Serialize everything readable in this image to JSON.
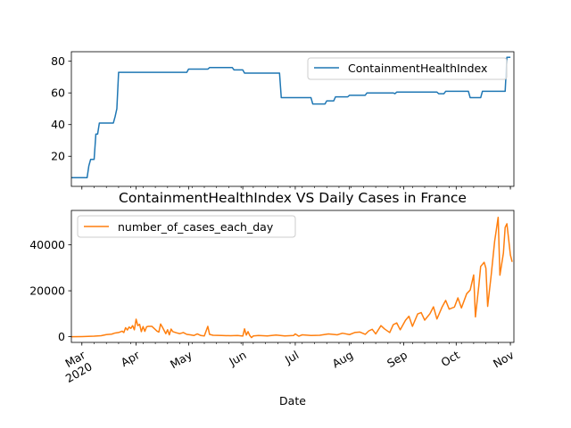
{
  "chart_data": [
    {
      "type": "line",
      "title": "",
      "xlabel": "",
      "ylabel": "",
      "xlim": [
        "2020-02-24",
        "2020-11-03"
      ],
      "ylim": [
        1,
        86
      ],
      "yticks": [
        20,
        40,
        60,
        80
      ],
      "legend_position": "top-right",
      "grid": false,
      "series": [
        {
          "name": "ContainmentHealthIndex",
          "color": "#1f77b4",
          "points": [
            [
              "2020-02-24",
              6.5
            ],
            [
              "2020-03-02",
              6.5
            ],
            [
              "2020-03-04",
              6.5
            ],
            [
              "2020-03-05",
              14
            ],
            [
              "2020-03-06",
              18
            ],
            [
              "2020-03-08",
              18
            ],
            [
              "2020-03-09",
              34
            ],
            [
              "2020-03-10",
              34
            ],
            [
              "2020-03-11",
              41
            ],
            [
              "2020-03-18",
              41
            ],
            [
              "2020-03-19",
              41
            ],
            [
              "2020-03-20",
              45
            ],
            [
              "2020-03-21",
              50
            ],
            [
              "2020-03-22",
              73
            ],
            [
              "2020-04-30",
              73
            ],
            [
              "2020-05-01",
              75
            ],
            [
              "2020-05-12",
              75
            ],
            [
              "2020-05-13",
              76
            ],
            [
              "2020-05-26",
              76
            ],
            [
              "2020-05-27",
              74.5
            ],
            [
              "2020-06-01",
              74.5
            ],
            [
              "2020-06-02",
              72.5
            ],
            [
              "2020-06-22",
              72.5
            ],
            [
              "2020-06-23",
              57
            ],
            [
              "2020-07-10",
              57
            ],
            [
              "2020-07-11",
              53
            ],
            [
              "2020-07-18",
              53
            ],
            [
              "2020-07-19",
              55
            ],
            [
              "2020-07-23",
              55
            ],
            [
              "2020-07-24",
              57.5
            ],
            [
              "2020-07-31",
              57.5
            ],
            [
              "2020-08-01",
              58.5
            ],
            [
              "2020-08-10",
              58.5
            ],
            [
              "2020-08-11",
              60
            ],
            [
              "2020-08-26",
              60
            ],
            [
              "2020-08-27",
              59.5
            ],
            [
              "2020-08-28",
              60.5
            ],
            [
              "2020-09-20",
              60.5
            ],
            [
              "2020-09-21",
              59.5
            ],
            [
              "2020-09-24",
              59.5
            ],
            [
              "2020-09-25",
              61
            ],
            [
              "2020-10-08",
              61
            ],
            [
              "2020-10-09",
              57
            ],
            [
              "2020-10-15",
              57
            ],
            [
              "2020-10-16",
              61
            ],
            [
              "2020-10-28",
              61
            ],
            [
              "2020-10-29",
              61
            ],
            [
              "2020-10-30",
              82.5
            ],
            [
              "2020-11-01",
              82.5
            ]
          ]
        }
      ]
    },
    {
      "type": "line",
      "title": "ContainmentHealthIndex VS Daily Cases in France",
      "xlabel": "Date",
      "ylabel": "",
      "xlim": [
        "2020-02-24",
        "2020-11-03"
      ],
      "ylim": [
        -2500,
        55000
      ],
      "yticks": [
        0,
        20000,
        40000
      ],
      "xticks": [
        {
          "date": "2020-03-01",
          "label": "Mar",
          "sublabel": "2020"
        },
        {
          "date": "2020-04-01",
          "label": "Apr"
        },
        {
          "date": "2020-05-01",
          "label": "May"
        },
        {
          "date": "2020-06-01",
          "label": "Jun"
        },
        {
          "date": "2020-07-01",
          "label": "Jul"
        },
        {
          "date": "2020-08-01",
          "label": "Aug"
        },
        {
          "date": "2020-09-01",
          "label": "Sep"
        },
        {
          "date": "2020-10-01",
          "label": "Oct"
        },
        {
          "date": "2020-11-01",
          "label": "Nov"
        }
      ],
      "legend_position": "top-left",
      "grid": false,
      "series": [
        {
          "name": "number_of_cases_each_day",
          "color": "#ff7f0e",
          "points": [
            [
              "2020-02-24",
              0
            ],
            [
              "2020-03-01",
              50
            ],
            [
              "2020-03-08",
              200
            ],
            [
              "2020-03-12",
              400
            ],
            [
              "2020-03-15",
              900
            ],
            [
              "2020-03-18",
              1100
            ],
            [
              "2020-03-20",
              1600
            ],
            [
              "2020-03-22",
              1800
            ],
            [
              "2020-03-24",
              2400
            ],
            [
              "2020-03-25",
              1800
            ],
            [
              "2020-03-26",
              3900
            ],
            [
              "2020-03-27",
              2900
            ],
            [
              "2020-03-28",
              4200
            ],
            [
              "2020-03-29",
              3600
            ],
            [
              "2020-03-30",
              4800
            ],
            [
              "2020-03-31",
              3000
            ],
            [
              "2020-04-01",
              7600
            ],
            [
              "2020-04-02",
              4800
            ],
            [
              "2020-04-03",
              5400
            ],
            [
              "2020-04-04",
              2200
            ],
            [
              "2020-04-05",
              4400
            ],
            [
              "2020-04-06",
              2300
            ],
            [
              "2020-04-07",
              4300
            ],
            [
              "2020-04-08",
              4500
            ],
            [
              "2020-04-10",
              4500
            ],
            [
              "2020-04-12",
              3100
            ],
            [
              "2020-04-13",
              2400
            ],
            [
              "2020-04-14",
              2000
            ],
            [
              "2020-04-15",
              5500
            ],
            [
              "2020-04-16",
              4200
            ],
            [
              "2020-04-18",
              1300
            ],
            [
              "2020-04-19",
              3000
            ],
            [
              "2020-04-20",
              800
            ],
            [
              "2020-04-21",
              3300
            ],
            [
              "2020-04-22",
              2200
            ],
            [
              "2020-04-24",
              1700
            ],
            [
              "2020-04-26",
              1300
            ],
            [
              "2020-04-28",
              1800
            ],
            [
              "2020-04-30",
              1000
            ],
            [
              "2020-05-02",
              800
            ],
            [
              "2020-05-04",
              500
            ],
            [
              "2020-05-06",
              1200
            ],
            [
              "2020-05-08",
              500
            ],
            [
              "2020-05-10",
              300
            ],
            [
              "2020-05-12",
              4500
            ],
            [
              "2020-05-13",
              1000
            ],
            [
              "2020-05-15",
              600
            ],
            [
              "2020-05-20",
              500
            ],
            [
              "2020-05-25",
              400
            ],
            [
              "2020-05-29",
              500
            ],
            [
              "2020-06-01",
              250
            ],
            [
              "2020-06-02",
              3400
            ],
            [
              "2020-06-03",
              700
            ],
            [
              "2020-06-04",
              2200
            ],
            [
              "2020-06-05",
              500
            ],
            [
              "2020-06-06",
              -400
            ],
            [
              "2020-06-07",
              300
            ],
            [
              "2020-06-10",
              500
            ],
            [
              "2020-06-15",
              300
            ],
            [
              "2020-06-20",
              700
            ],
            [
              "2020-06-25",
              300
            ],
            [
              "2020-06-30",
              500
            ],
            [
              "2020-07-01",
              1200
            ],
            [
              "2020-07-03",
              200
            ],
            [
              "2020-07-05",
              800
            ],
            [
              "2020-07-10",
              500
            ],
            [
              "2020-07-15",
              600
            ],
            [
              "2020-07-20",
              1200
            ],
            [
              "2020-07-25",
              800
            ],
            [
              "2020-07-28",
              1500
            ],
            [
              "2020-08-01",
              900
            ],
            [
              "2020-08-04",
              1800
            ],
            [
              "2020-08-07",
              2000
            ],
            [
              "2020-08-10",
              1000
            ],
            [
              "2020-08-12",
              2500
            ],
            [
              "2020-08-14",
              3200
            ],
            [
              "2020-08-16",
              1200
            ],
            [
              "2020-08-19",
              4800
            ],
            [
              "2020-08-21",
              3400
            ],
            [
              "2020-08-24",
              1800
            ],
            [
              "2020-08-26",
              5200
            ],
            [
              "2020-08-28",
              6000
            ],
            [
              "2020-08-30",
              3000
            ],
            [
              "2020-09-02",
              7100
            ],
            [
              "2020-09-04",
              8900
            ],
            [
              "2020-09-06",
              4500
            ],
            [
              "2020-09-09",
              9900
            ],
            [
              "2020-09-11",
              10500
            ],
            [
              "2020-09-13",
              7200
            ],
            [
              "2020-09-16",
              10000
            ],
            [
              "2020-09-18",
              13000
            ],
            [
              "2020-09-20",
              7700
            ],
            [
              "2020-09-23",
              13000
            ],
            [
              "2020-09-25",
              15800
            ],
            [
              "2020-09-27",
              12000
            ],
            [
              "2020-09-30",
              12900
            ],
            [
              "2020-10-02",
              16900
            ],
            [
              "2020-10-04",
              12500
            ],
            [
              "2020-10-07",
              18700
            ],
            [
              "2020-10-09",
              20300
            ],
            [
              "2020-10-11",
              26900
            ],
            [
              "2020-10-12",
              8600
            ],
            [
              "2020-10-14",
              22600
            ],
            [
              "2020-10-15",
              30600
            ],
            [
              "2020-10-17",
              32400
            ],
            [
              "2020-10-18",
              29800
            ],
            [
              "2020-10-19",
              13200
            ],
            [
              "2020-10-21",
              26700
            ],
            [
              "2020-10-23",
              41600
            ],
            [
              "2020-10-25",
              52000
            ],
            [
              "2020-10-26",
              26800
            ],
            [
              "2020-10-28",
              36400
            ],
            [
              "2020-10-29",
              47600
            ],
            [
              "2020-10-30",
              49200
            ],
            [
              "2020-11-01",
              35600
            ],
            [
              "2020-11-02",
              32600
            ]
          ]
        }
      ]
    }
  ]
}
